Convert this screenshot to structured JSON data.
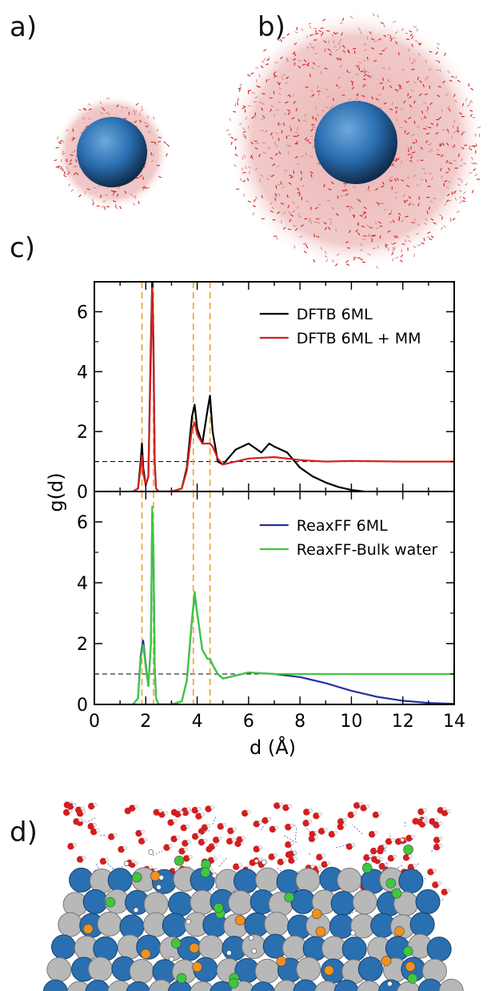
{
  "panels": {
    "a": "a)",
    "b": "b)",
    "c": "c)",
    "d": "d)"
  },
  "colors": {
    "dftb_6ml": "#000000",
    "dftb_6ml_mm": "#d62020",
    "reaxff_6ml": "#2a2fa0",
    "reaxff_bulk": "#3ec83e",
    "ref_line": "#000000",
    "peak_marker": "#f0a030",
    "nanoparticle_blue": "#2a6fb0",
    "water_red": "#d41e1e",
    "water_light": "#d98a8a"
  },
  "chart_data": [
    {
      "type": "line",
      "ylabel": "g(d)",
      "xlim": [
        0,
        14
      ],
      "ylim": [
        0,
        7
      ],
      "y_ticks": [
        "0",
        "2",
        "4",
        "6"
      ],
      "reference_line_y": 1,
      "vertical_markers_x": [
        1.85,
        2.3,
        3.85,
        4.5
      ],
      "legend": "top-right",
      "series": [
        {
          "name": "DFTB 6ML",
          "x": [
            1.5,
            1.7,
            1.8,
            1.85,
            1.9,
            2.0,
            2.1,
            2.2,
            2.25,
            2.3,
            2.35,
            2.4,
            2.5,
            3.0,
            3.4,
            3.6,
            3.8,
            3.9,
            4.0,
            4.2,
            4.4,
            4.5,
            4.6,
            4.8,
            5.0,
            5.5,
            6.0,
            6.5,
            6.8,
            7.0,
            7.5,
            8.0,
            8.5,
            9.0,
            9.5,
            10.0,
            10.5
          ],
          "y": [
            0,
            0.1,
            1.0,
            1.6,
            0.8,
            0.2,
            0.5,
            5.0,
            7.0,
            5.0,
            1.0,
            0.1,
            0,
            0,
            0.1,
            0.8,
            2.5,
            2.9,
            2.1,
            1.6,
            2.7,
            3.2,
            2.0,
            1.0,
            0.9,
            1.4,
            1.6,
            1.3,
            1.6,
            1.5,
            1.3,
            0.8,
            0.5,
            0.3,
            0.15,
            0.05,
            0
          ]
        },
        {
          "name": "DFTB 6ML + MM",
          "x": [
            1.5,
            1.7,
            1.8,
            1.85,
            1.9,
            2.0,
            2.1,
            2.2,
            2.25,
            2.3,
            2.35,
            2.4,
            2.5,
            3.0,
            3.4,
            3.6,
            3.8,
            3.9,
            4.0,
            4.2,
            4.4,
            4.5,
            4.6,
            4.8,
            5.0,
            5.5,
            6.0,
            7.0,
            8.0,
            9.0,
            10.0,
            12.0,
            14.0
          ],
          "y": [
            0,
            0.1,
            0.8,
            1.2,
            0.6,
            0.2,
            0.5,
            4.5,
            6.8,
            4.5,
            1.0,
            0.1,
            0,
            0,
            0.1,
            0.7,
            2.1,
            2.3,
            1.9,
            1.6,
            1.6,
            1.6,
            1.5,
            1.1,
            0.9,
            1.0,
            1.1,
            1.15,
            1.05,
            1.0,
            1.02,
            1.0,
            1.0
          ]
        }
      ]
    },
    {
      "type": "line",
      "xlabel": "d (Å)",
      "ylabel": "g(d)",
      "xlim": [
        0,
        14
      ],
      "ylim": [
        0,
        7
      ],
      "x_ticks": [
        "0",
        "2",
        "4",
        "6",
        "8",
        "10",
        "12",
        "14"
      ],
      "y_ticks": [
        "0",
        "2",
        "4",
        "6"
      ],
      "reference_line_y": 1,
      "vertical_markers_x": [
        1.85,
        2.3,
        3.85,
        4.5
      ],
      "legend": "top-right",
      "series": [
        {
          "name": "ReaxFF 6ML",
          "x": [
            1.5,
            1.7,
            1.8,
            1.9,
            2.0,
            2.1,
            2.2,
            2.25,
            2.3,
            2.35,
            2.4,
            2.5,
            3.0,
            3.4,
            3.6,
            3.8,
            3.9,
            4.0,
            4.2,
            4.4,
            4.5,
            4.6,
            4.8,
            5.0,
            5.5,
            6.0,
            7.0,
            8.0,
            9.0,
            10.0,
            11.0,
            12.0,
            13.0,
            14.0
          ],
          "y": [
            0,
            0.2,
            1.6,
            2.1,
            1.3,
            0.6,
            2.0,
            6.2,
            5.0,
            1.2,
            0.2,
            0,
            0,
            0.1,
            0.8,
            2.8,
            3.6,
            3.0,
            1.8,
            1.5,
            1.5,
            1.3,
            1.0,
            0.85,
            0.95,
            1.05,
            1.0,
            0.9,
            0.7,
            0.45,
            0.25,
            0.12,
            0.05,
            0.02
          ]
        },
        {
          "name": "ReaxFF-Bulk water",
          "x": [
            1.5,
            1.7,
            1.8,
            1.9,
            2.0,
            2.1,
            2.2,
            2.25,
            2.3,
            2.35,
            2.4,
            2.5,
            3.0,
            3.4,
            3.6,
            3.8,
            3.9,
            4.0,
            4.2,
            4.4,
            4.5,
            4.6,
            4.8,
            5.0,
            5.5,
            6.0,
            7.0,
            8.0,
            9.0,
            10.0,
            11.0,
            12.0,
            13.0,
            14.0
          ],
          "y": [
            0,
            0.2,
            1.5,
            1.95,
            1.2,
            0.6,
            2.0,
            6.5,
            5.2,
            1.2,
            0.2,
            0,
            0,
            0.1,
            0.8,
            2.8,
            3.7,
            3.0,
            1.8,
            1.5,
            1.5,
            1.3,
            1.0,
            0.85,
            0.95,
            1.05,
            1.0,
            1.0,
            1.0,
            1.0,
            1.0,
            1.0,
            1.0,
            1.0
          ]
        }
      ]
    }
  ]
}
